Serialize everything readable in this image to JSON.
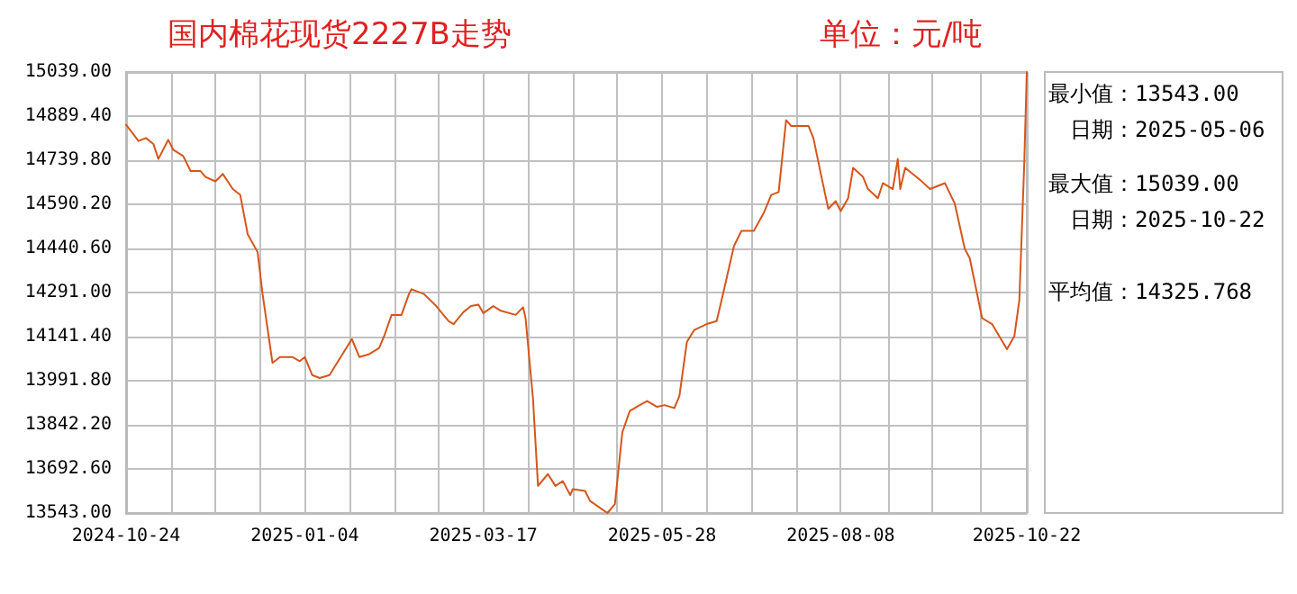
{
  "chart_data": {
    "type": "line",
    "title": "国内棉花现货2227B走势",
    "subtitle": "单位：元/吨",
    "annotations": [
      "最小值：13543.00",
      "日期：2025-05-06",
      "最大值：15039.00",
      "日期：2025-10-22",
      "平均值：14325.768"
    ],
    "x": [
      "2024-10-24",
      "2024-10-29",
      "2024-11-01",
      "2024-11-04",
      "2024-11-06",
      "2024-11-10",
      "2024-11-12",
      "2024-11-16",
      "2024-11-19",
      "2024-11-23",
      "2024-11-25",
      "2024-11-29",
      "2024-12-02",
      "2024-12-06",
      "2024-12-09",
      "2024-12-12",
      "2024-12-16",
      "2024-12-18",
      "2024-12-22",
      "2024-12-25",
      "2024-12-30",
      "2025-01-02",
      "2025-01-04",
      "2025-01-07",
      "2025-01-10",
      "2025-01-14",
      "2025-01-17",
      "2025-01-23",
      "2025-01-26",
      "2025-01-30",
      "2025-02-03",
      "2025-02-05",
      "2025-02-08",
      "2025-02-12",
      "2025-02-15",
      "2025-02-16",
      "2025-02-21",
      "2025-02-26",
      "2025-03-03",
      "2025-03-05",
      "2025-03-09",
      "2025-03-12",
      "2025-03-15",
      "2025-03-17",
      "2025-03-21",
      "2025-03-24",
      "2025-03-30",
      "2025-04-02",
      "2025-04-03",
      "2025-04-06",
      "2025-04-08",
      "2025-04-12",
      "2025-04-15",
      "2025-04-18",
      "2025-04-21",
      "2025-04-22",
      "2025-04-27",
      "2025-04-29",
      "2025-05-06",
      "2025-05-09",
      "2025-05-12",
      "2025-05-15",
      "2025-05-19",
      "2025-05-22",
      "2025-05-26",
      "2025-05-29",
      "2025-06-02",
      "2025-06-04",
      "2025-06-07",
      "2025-06-10",
      "2025-06-15",
      "2025-06-19",
      "2025-06-21",
      "2025-06-26",
      "2025-06-29",
      "2025-07-04",
      "2025-07-08",
      "2025-07-11",
      "2025-07-14",
      "2025-07-17",
      "2025-07-19",
      "2025-07-26",
      "2025-07-28",
      "2025-07-31",
      "2025-08-03",
      "2025-08-06",
      "2025-08-08",
      "2025-08-11",
      "2025-08-13",
      "2025-08-17",
      "2025-08-19",
      "2025-08-23",
      "2025-08-25",
      "2025-08-29",
      "2025-08-31",
      "2025-09-01",
      "2025-09-03",
      "2025-09-06",
      "2025-09-09",
      "2025-09-13",
      "2025-09-19",
      "2025-09-23",
      "2025-09-27",
      "2025-09-29",
      "2025-10-04",
      "2025-10-08",
      "2025-10-12",
      "2025-10-14",
      "2025-10-17",
      "2025-10-19",
      "2025-10-21",
      "2025-10-22"
    ],
    "series": [
      {
        "color": "#d4561c",
        "values": [
          14860,
          14805,
          14815,
          14795,
          14744,
          14809,
          14775,
          14754,
          14703,
          14703,
          14683,
          14668,
          14693,
          14642,
          14622,
          14489,
          14428,
          14286,
          14052,
          14072,
          14072,
          14058,
          14072,
          14011,
          14001,
          14011,
          14052,
          14133,
          14072,
          14082,
          14103,
          14143,
          14215,
          14215,
          14286,
          14302,
          14286,
          14245,
          14194,
          14184,
          14225,
          14245,
          14250,
          14221,
          14245,
          14229,
          14215,
          14241,
          14204,
          13930,
          13635,
          13675,
          13635,
          13651,
          13604,
          13624,
          13618,
          13584,
          13543,
          13573,
          13817,
          13889,
          13909,
          13923,
          13903,
          13909,
          13899,
          13940,
          14123,
          14164,
          14184,
          14194,
          14265,
          14449,
          14500,
          14500,
          14561,
          14622,
          14632,
          14876,
          14856,
          14856,
          14815,
          14693,
          14575,
          14601,
          14567,
          14611,
          14714,
          14683,
          14642,
          14611,
          14662,
          14642,
          14744,
          14642,
          14714,
          14693,
          14673,
          14642,
          14662,
          14592,
          14439,
          14408,
          14204,
          14184,
          14127,
          14099,
          14143,
          14265,
          14734,
          15039
        ]
      }
    ],
    "xlim": [
      "2024-10-24",
      "2025-10-22"
    ],
    "xticks": [
      "2024-10-24",
      {
        "value": "2024-11-11",
        "label": null
      },
      {
        "value": "2024-11-29",
        "label": null
      },
      {
        "value": "2024-12-17",
        "label": null
      },
      "2025-01-04",
      {
        "value": "2025-01-22",
        "label": null
      },
      {
        "value": "2025-02-09",
        "label": null
      },
      {
        "value": "2025-02-27",
        "label": null
      },
      "2025-03-17",
      {
        "value": "2025-04-04",
        "label": null
      },
      {
        "value": "2025-04-22",
        "label": null
      },
      {
        "value": "2025-05-10",
        "label": null
      },
      "2025-05-28",
      {
        "value": "2025-06-15",
        "label": null
      },
      {
        "value": "2025-07-03",
        "label": null
      },
      {
        "value": "2025-07-21",
        "label": null
      },
      "2025-08-08",
      {
        "value": "2025-08-27",
        "label": null
      },
      {
        "value": "2025-09-14",
        "label": null
      },
      {
        "value": "2025-10-03",
        "label": null
      },
      "2025-10-22"
    ],
    "ylim": [
      13543,
      15039
    ],
    "yticks": [
      {
        "value": 13543,
        "label": "13543.00"
      },
      {
        "value": 13692.6,
        "label": "13692.60"
      },
      {
        "value": 13842.2,
        "label": "13842.20"
      },
      {
        "value": 13991.8,
        "label": "13991.80"
      },
      {
        "value": 14141.4,
        "label": "14141.40"
      },
      {
        "value": 14291,
        "label": "14291.00"
      },
      {
        "value": 14440.6,
        "label": "14440.60"
      },
      {
        "value": 14590.2,
        "label": "14590.20"
      },
      {
        "value": 14739.8,
        "label": "14739.80"
      },
      {
        "value": 14889.4,
        "label": "14889.40"
      },
      {
        "value": 15039,
        "label": "15039.00"
      }
    ],
    "grid": true,
    "marker": "none",
    "line_style": "solid"
  }
}
